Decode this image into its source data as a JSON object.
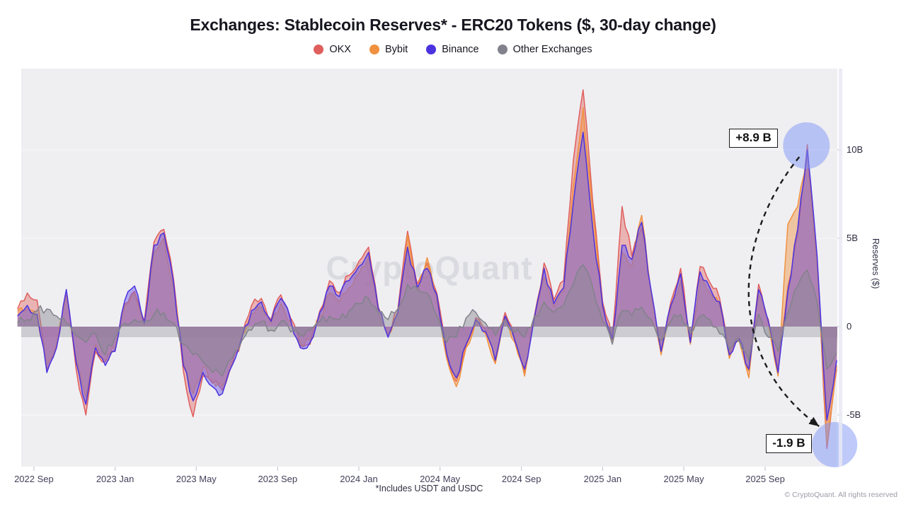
{
  "chart_data": {
    "type": "area",
    "title": "Exchanges: Stablecoin Reserves* - ERC20 Tokens ($, 30-day change)",
    "footnote": "*Includes USDT and USDC",
    "watermark": "CryptoQuant",
    "copyright": "© CryptoQuant. All rights reserved",
    "legend_position": "top-center",
    "grid": "horizontal-only",
    "x_axis": {
      "ticks": [
        {
          "label": "2022 Sep",
          "year": 2022.667
        },
        {
          "label": "2023 Jan",
          "year": 2023.0
        },
        {
          "label": "2023 May",
          "year": 2023.333
        },
        {
          "label": "2023 Sep",
          "year": 2023.667
        },
        {
          "label": "2024 Jan",
          "year": 2024.0
        },
        {
          "label": "2024 May",
          "year": 2024.333
        },
        {
          "label": "2024 Sep",
          "year": 2024.667
        },
        {
          "label": "2025 Jan",
          "year": 2025.0
        },
        {
          "label": "2025 May",
          "year": 2025.333
        },
        {
          "label": "2025 Sep",
          "year": 2025.667
        }
      ],
      "range": [
        2022.615,
        2025.963
      ]
    },
    "y_axis": {
      "title": "Reserves ($)",
      "ticks": [
        {
          "label": "10B",
          "value": 10
        },
        {
          "label": "5B",
          "value": 5
        },
        {
          "label": "0",
          "value": 0
        },
        {
          "label": "-5B",
          "value": -5
        }
      ],
      "range": [
        -7.9,
        14.6
      ],
      "zero_band": true
    },
    "x_start": 2022.6,
    "x_step": 0.04,
    "unit": "billion USD (30-day change)",
    "style": {
      "jitter": 0.55,
      "highlight_color": "rgba(128,150,246,0.5)"
    },
    "series": [
      {
        "name": "OKX",
        "color": "#df5f5d",
        "fill": "rgba(223,95,93,0.42)",
        "values": [
          1.0,
          1.9,
          1.5,
          -2.4,
          -1.1,
          1.8,
          -2.4,
          -5.0,
          -1.4,
          -2.0,
          -1.3,
          1.3,
          2.0,
          0.3,
          4.8,
          5.5,
          2.7,
          -2.5,
          -5.1,
          -2.8,
          -3.2,
          -3.6,
          -2.1,
          -0.7,
          1.2,
          1.6,
          0.4,
          1.8,
          0.5,
          -1.1,
          -1.0,
          0.9,
          2.6,
          1.9,
          2.9,
          3.7,
          4.5,
          1.1,
          -0.5,
          1.0,
          5.4,
          2.4,
          3.6,
          1.9,
          -1.6,
          -3.1,
          -1.1,
          0.5,
          -0.2,
          -2.0,
          0.8,
          -0.7,
          -2.6,
          0.6,
          3.6,
          1.5,
          2.6,
          9.4,
          13.4,
          7.0,
          1.4,
          -0.6,
          6.8,
          4.0,
          5.6,
          1.9,
          -1.5,
          1.4,
          3.3,
          -0.8,
          3.4,
          2.5,
          1.6,
          -1.5,
          -0.6,
          -2.5,
          2.4,
          0.4,
          -2.4,
          2.3,
          5.2,
          10.3,
          3.7,
          -6.9,
          -2.4
        ]
      },
      {
        "name": "Bybit",
        "color": "#f0913f",
        "fill": "rgba(240,145,63,0.45)",
        "values": [
          0.9,
          1.0,
          0.5,
          -2.2,
          -1.0,
          1.7,
          -1.8,
          -4.0,
          -1.0,
          -1.9,
          -1.2,
          1.2,
          1.9,
          0.1,
          4.2,
          5.0,
          2.2,
          -2.0,
          -3.8,
          -2.3,
          -3.0,
          -3.4,
          -2.0,
          -0.5,
          0.7,
          1.1,
          0.2,
          1.3,
          0.3,
          -1.0,
          -0.8,
          0.6,
          1.9,
          1.4,
          2.2,
          3.0,
          4.0,
          0.8,
          -0.5,
          0.7,
          5.2,
          2.0,
          3.9,
          1.5,
          -1.8,
          -3.4,
          -1.2,
          0.3,
          -0.4,
          -2.1,
          0.5,
          -0.9,
          -2.8,
          0.4,
          2.8,
          1.1,
          2.0,
          8.0,
          12.4,
          6.4,
          1.0,
          -0.8,
          4.2,
          3.4,
          6.3,
          1.7,
          -1.6,
          1.0,
          2.6,
          -1.0,
          2.7,
          1.9,
          1.2,
          -1.8,
          -0.8,
          -2.9,
          1.8,
          0.2,
          -2.8,
          5.8,
          6.8,
          9.6,
          3.4,
          -6.6,
          -2.2
        ]
      },
      {
        "name": "Binance",
        "color": "#4b32df",
        "fill": "rgba(112,96,233,0.50)",
        "values": [
          0.6,
          1.2,
          0.7,
          -2.6,
          -1.2,
          2.1,
          -2.0,
          -4.4,
          -1.2,
          -2.2,
          -1.4,
          1.5,
          2.3,
          0.2,
          4.6,
          5.3,
          2.5,
          -2.2,
          -4.2,
          -2.6,
          -3.4,
          -3.8,
          -2.2,
          -0.6,
          0.9,
          1.4,
          0.3,
          1.6,
          0.4,
          -1.2,
          -0.9,
          0.8,
          2.3,
          1.7,
          2.6,
          3.4,
          4.2,
          1.0,
          -0.6,
          0.8,
          4.5,
          2.2,
          3.3,
          1.8,
          -1.5,
          -2.9,
          -1.0,
          0.4,
          -0.3,
          -1.9,
          0.6,
          -0.8,
          -2.4,
          0.5,
          3.3,
          1.3,
          2.2,
          7.0,
          11.0,
          5.5,
          1.2,
          -0.7,
          4.6,
          3.8,
          5.9,
          2.0,
          -1.4,
          1.2,
          3.0,
          -0.9,
          3.1,
          2.2,
          1.4,
          -1.6,
          -0.7,
          -2.4,
          2.1,
          0.3,
          -2.6,
          2.0,
          5.5,
          10.0,
          4.0,
          -5.3,
          -1.9
        ]
      },
      {
        "name": "Other Exchanges",
        "color": "#82828c",
        "fill": "rgba(138,138,148,0.48)",
        "values": [
          0.2,
          0.4,
          0.9,
          1.0,
          0.6,
          0.2,
          -0.5,
          -0.9,
          -0.4,
          -1.6,
          -0.6,
          0.2,
          0.4,
          0.3,
          0.7,
          0.8,
          0.2,
          -1.0,
          -1.6,
          -2.0,
          -2.6,
          -2.8,
          -1.8,
          -0.8,
          -0.2,
          0.3,
          -0.2,
          0.3,
          -0.3,
          -0.5,
          -0.2,
          0.3,
          0.6,
          0.4,
          0.9,
          1.3,
          1.6,
          0.8,
          0.4,
          1.0,
          2.4,
          2.2,
          1.9,
          0.6,
          -0.9,
          -0.6,
          0.5,
          0.8,
          0.2,
          -0.5,
          0.4,
          -0.3,
          -0.6,
          0.6,
          1.4,
          0.8,
          1.2,
          2.4,
          3.5,
          2.2,
          0.3,
          -1.0,
          0.9,
          0.6,
          1.1,
          0.4,
          -0.8,
          0.3,
          0.7,
          -0.4,
          0.6,
          0.4,
          -0.4,
          -1.3,
          -0.8,
          -1.9,
          0.7,
          -0.6,
          -1.4,
          0.8,
          2.3,
          3.2,
          1.4,
          -2.4,
          -1.5
        ]
      }
    ],
    "annotations": [
      {
        "label": "+8.9 B",
        "x": 2025.836,
        "y": 10.0,
        "side": "top"
      },
      {
        "label": "-1.9 B",
        "x": 2025.952,
        "y": -6.6,
        "side": "bottom"
      }
    ]
  }
}
